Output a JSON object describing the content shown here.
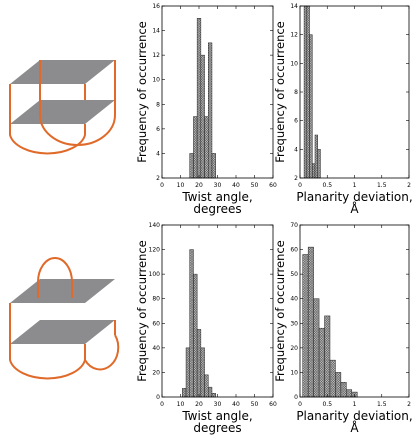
{
  "colors": {
    "plane": "#8c8c8e",
    "loop": "#e06a2a",
    "bar_fill": "#d8d8d8",
    "bar_stroke": "#222222"
  },
  "diagrams": [
    {
      "name": "topology-top",
      "loop_type": "lateral-and-diagonal"
    },
    {
      "name": "topology-bottom",
      "loop_type": "diagonal-and-lateral"
    }
  ],
  "chart_data": [
    {
      "type": "bar",
      "ylabel": "Frequency of occurrence",
      "xlabel": [
        "Twist angle,",
        "degrees"
      ],
      "xlim": [
        0,
        60
      ],
      "ylim": [
        2,
        16
      ],
      "xticks": [
        0,
        10,
        20,
        30,
        40,
        50,
        60
      ],
      "yticks": [
        2,
        4,
        6,
        8,
        10,
        12,
        14,
        16
      ],
      "bin_width": 2,
      "bins": [
        {
          "x": 16,
          "value": 4
        },
        {
          "x": 18,
          "value": 7
        },
        {
          "x": 20,
          "value": 15
        },
        {
          "x": 22,
          "value": 12
        },
        {
          "x": 24,
          "value": 7
        },
        {
          "x": 26,
          "value": 13
        },
        {
          "x": 28,
          "value": 4
        }
      ]
    },
    {
      "type": "bar",
      "ylabel": "Frequency of occurrence",
      "xlabel": [
        "Planarity deviation,",
        "Å"
      ],
      "xlim": [
        0,
        2
      ],
      "ylim": [
        2,
        14
      ],
      "xticks": [
        0,
        0.5,
        1,
        1.5,
        2
      ],
      "yticks": [
        2,
        4,
        6,
        8,
        10,
        12,
        14
      ],
      "bin_width": 0.05,
      "bins": [
        {
          "x": 0.1,
          "value": 14
        },
        {
          "x": 0.15,
          "value": 14
        },
        {
          "x": 0.2,
          "value": 12
        },
        {
          "x": 0.25,
          "value": 3
        },
        {
          "x": 0.3,
          "value": 5
        },
        {
          "x": 0.35,
          "value": 4
        }
      ]
    },
    {
      "type": "bar",
      "ylabel": "Frequency of occurrence",
      "xlabel": [
        "Twist angle,",
        "degrees"
      ],
      "xlim": [
        0,
        60
      ],
      "ylim": [
        0,
        140
      ],
      "xticks": [
        0,
        10,
        20,
        30,
        40,
        50,
        60
      ],
      "yticks": [
        0,
        20,
        40,
        60,
        80,
        100,
        120,
        140
      ],
      "bin_width": 2,
      "bins": [
        {
          "x": 12,
          "value": 7
        },
        {
          "x": 14,
          "value": 40
        },
        {
          "x": 16,
          "value": 120
        },
        {
          "x": 18,
          "value": 100
        },
        {
          "x": 20,
          "value": 55
        },
        {
          "x": 22,
          "value": 40
        },
        {
          "x": 24,
          "value": 18
        },
        {
          "x": 26,
          "value": 8
        },
        {
          "x": 28,
          "value": 3
        }
      ]
    },
    {
      "type": "bar",
      "ylabel": "Frequency of occurrence",
      "xlabel": [
        "Planarity deviation,",
        "Å"
      ],
      "xlim": [
        0,
        2
      ],
      "ylim": [
        0,
        70
      ],
      "xticks": [
        0,
        0.5,
        1,
        1.5,
        2
      ],
      "yticks": [
        0,
        10,
        20,
        30,
        40,
        50,
        60,
        70
      ],
      "bin_width": 0.1,
      "bins": [
        {
          "x": 0.1,
          "value": 58
        },
        {
          "x": 0.2,
          "value": 61
        },
        {
          "x": 0.3,
          "value": 40
        },
        {
          "x": 0.4,
          "value": 28
        },
        {
          "x": 0.5,
          "value": 33
        },
        {
          "x": 0.6,
          "value": 15
        },
        {
          "x": 0.7,
          "value": 10
        },
        {
          "x": 0.8,
          "value": 6
        },
        {
          "x": 0.9,
          "value": 3
        },
        {
          "x": 1.0,
          "value": 2
        }
      ]
    }
  ]
}
